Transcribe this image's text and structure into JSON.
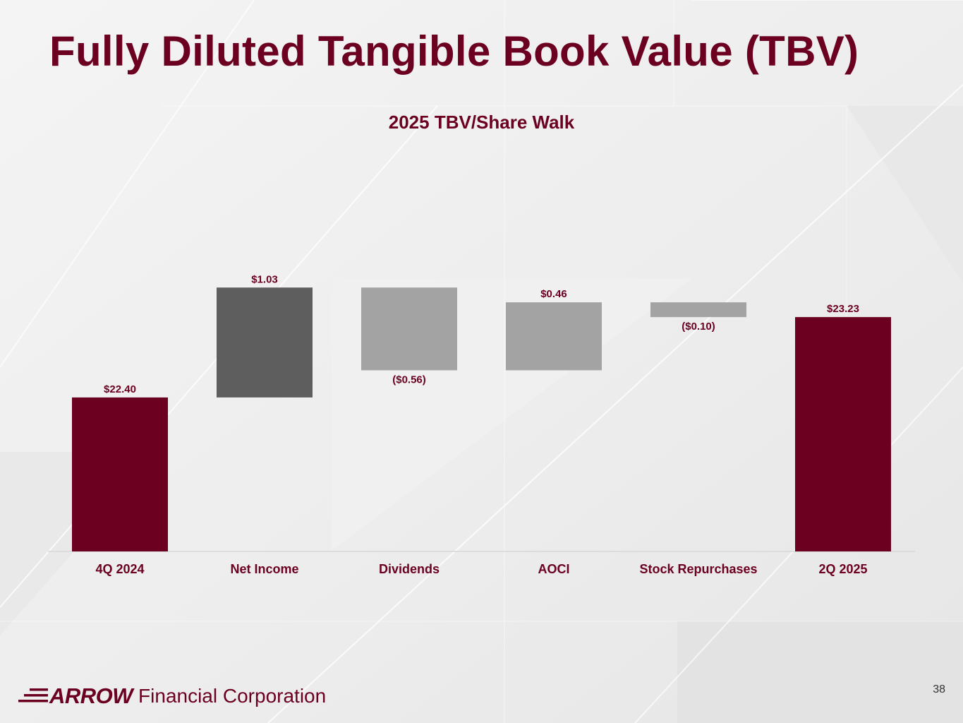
{
  "page": {
    "title": "Fully Diluted Tangible Book Value (TBV)",
    "page_number": "38"
  },
  "logo": {
    "brand": "ARROW",
    "rest": "Financial Corporation"
  },
  "colors": {
    "total": "#6b0020",
    "income": "#5e5e5e",
    "adjustment": "#a3a3a3",
    "label": "#6b0020"
  },
  "chart_data": {
    "type": "bar",
    "subtype": "waterfall",
    "title": "2025 TBV/Share Walk",
    "categories": [
      "4Q 2024",
      "Net Income",
      "Dividends",
      "AOCI",
      "Stock Repurchases",
      "2Q 2025"
    ],
    "values": [
      22.4,
      1.03,
      -0.56,
      0.46,
      -0.1,
      23.23
    ],
    "value_labels": [
      "$22.40",
      "$1.03",
      "($0.56)",
      "$0.46",
      "($0.10)",
      "$23.23"
    ],
    "kinds": [
      "total",
      "income",
      "adjustment",
      "adjustment",
      "adjustment",
      "total"
    ],
    "xlabel": "",
    "ylabel": "",
    "grid": false,
    "legend": "none"
  }
}
